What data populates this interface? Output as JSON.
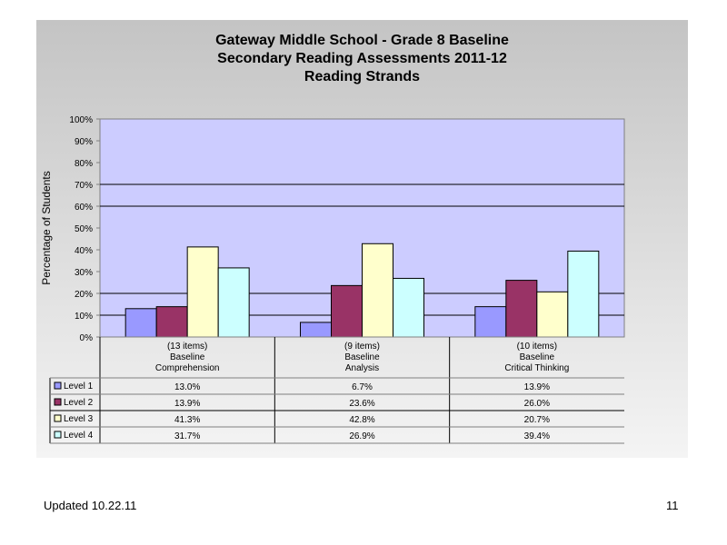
{
  "chart_data": {
    "type": "bar",
    "title": [
      "Gateway Middle School - Grade 8 Baseline",
      "Secondary Reading Assessments 2011-12",
      "Reading Strands"
    ],
    "ylabel": "Percentage of Students",
    "ylim": [
      0,
      100
    ],
    "yticks": [
      "0%",
      "10%",
      "20%",
      "30%",
      "40%",
      "50%",
      "60%",
      "70%",
      "80%",
      "90%",
      "100%"
    ],
    "categories": [
      [
        "(13 items)",
        "Baseline",
        "Comprehension"
      ],
      [
        "(9 items)",
        "Baseline",
        "Analysis"
      ],
      [
        "(10 items)",
        "Baseline",
        "Critical Thinking"
      ]
    ],
    "series": [
      {
        "name": "Level 1",
        "color": "#9999ff",
        "values": [
          13.0,
          6.7,
          13.9
        ],
        "labels": [
          "13.0%",
          "6.7%",
          "13.9%"
        ]
      },
      {
        "name": "Level 2",
        "color": "#993366",
        "values": [
          13.9,
          23.6,
          26.0
        ],
        "labels": [
          "13.9%",
          "23.6%",
          "26.0%"
        ]
      },
      {
        "name": "Level 3",
        "color": "#ffffcc",
        "values": [
          41.3,
          42.8,
          20.7
        ],
        "labels": [
          "41.3%",
          "42.8%",
          "20.7%"
        ]
      },
      {
        "name": "Level 4",
        "color": "#ccffff",
        "values": [
          31.7,
          26.9,
          39.4
        ],
        "labels": [
          "31.7%",
          "26.9%",
          "39.4%"
        ]
      }
    ],
    "plot_background": "#ccccff",
    "gridlines_at": [
      10,
      20,
      60,
      70
    ],
    "legend": "data-table"
  },
  "footer": {
    "updated": "Updated  10.22.11",
    "page_number": "11"
  }
}
